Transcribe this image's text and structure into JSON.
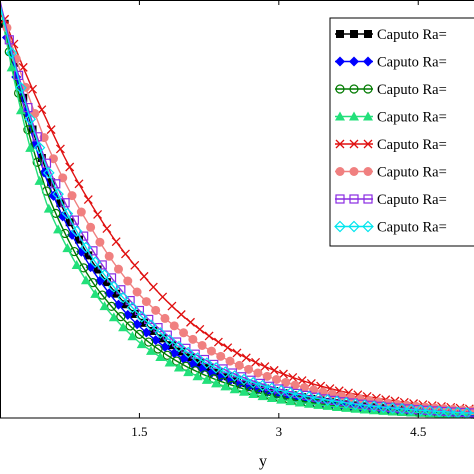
{
  "chart_data": {
    "type": "line",
    "title": "",
    "xlabel": "y",
    "ylabel": "",
    "xlim": [
      0,
      5.1
    ],
    "ylim": [
      0,
      1.05
    ],
    "x_ticks": [
      "1.5",
      "3",
      "4.5"
    ],
    "x_tick_values": [
      1.5,
      3,
      4.5
    ],
    "grid": false,
    "legend_position": "top-right",
    "series": [
      {
        "name": "Caputo Ra=",
        "color": "#000000",
        "marker": "square-filled",
        "values_at_x": {
          "x": [
            0.1,
            0.5,
            1.0,
            1.5,
            2.0,
            2.5,
            3.0,
            3.5,
            4.0,
            4.5,
            5.0
          ],
          "y": [
            0.94,
            0.62,
            0.39,
            0.25,
            0.16,
            0.1,
            0.065,
            0.042,
            0.028,
            0.019,
            0.013
          ]
        }
      },
      {
        "name": "Caputo Ra=",
        "color": "#0000ff",
        "marker": "diamond-filled",
        "values_at_x": {
          "x": [
            0.1,
            0.5,
            1.0,
            1.5,
            2.0,
            2.5,
            3.0,
            3.5,
            4.0,
            4.5,
            5.0
          ],
          "y": [
            0.93,
            0.6,
            0.37,
            0.23,
            0.145,
            0.092,
            0.059,
            0.038,
            0.025,
            0.017,
            0.011
          ]
        }
      },
      {
        "name": "Caputo Ra=",
        "color": "#007a00",
        "marker": "circle-open",
        "values_at_x": {
          "x": [
            0.1,
            0.5,
            1.0,
            1.5,
            2.0,
            2.5,
            3.0,
            3.5,
            4.0,
            4.5,
            5.0
          ],
          "y": [
            0.92,
            0.57,
            0.34,
            0.21,
            0.13,
            0.082,
            0.052,
            0.034,
            0.022,
            0.015,
            0.01
          ]
        }
      },
      {
        "name": "Caputo Ra=",
        "color": "#22e07a",
        "marker": "triangle-filled",
        "values_at_x": {
          "x": [
            0.1,
            0.5,
            1.0,
            1.5,
            2.0,
            2.5,
            3.0,
            3.5,
            4.0,
            4.5,
            5.0
          ],
          "y": [
            0.91,
            0.54,
            0.32,
            0.19,
            0.118,
            0.074,
            0.047,
            0.031,
            0.02,
            0.013,
            0.009
          ]
        }
      },
      {
        "name": "Caputo Ra=",
        "color": "#e01010",
        "marker": "x",
        "values_at_x": {
          "x": [
            0.1,
            0.5,
            1.0,
            1.5,
            2.0,
            2.5,
            3.0,
            3.5,
            4.0,
            4.5,
            5.0
          ],
          "y": [
            0.97,
            0.75,
            0.53,
            0.37,
            0.25,
            0.17,
            0.115,
            0.077,
            0.052,
            0.035,
            0.024
          ]
        }
      },
      {
        "name": "Caputo Ra=",
        "color": "#f08080",
        "marker": "circle-filled",
        "values_at_x": {
          "x": [
            0.1,
            0.5,
            1.0,
            1.5,
            2.0,
            2.5,
            3.0,
            3.5,
            4.0,
            4.5,
            5.0
          ],
          "y": [
            0.96,
            0.69,
            0.47,
            0.31,
            0.21,
            0.14,
            0.095,
            0.064,
            0.043,
            0.029,
            0.02
          ]
        }
      },
      {
        "name": "Caputo Ra=",
        "color": "#8a2be2",
        "marker": "square-open",
        "values_at_x": {
          "x": [
            0.1,
            0.5,
            1.0,
            1.5,
            2.0,
            2.5,
            3.0,
            3.5,
            4.0,
            4.5,
            5.0
          ],
          "y": [
            0.95,
            0.64,
            0.42,
            0.27,
            0.175,
            0.113,
            0.073,
            0.048,
            0.032,
            0.021,
            0.014
          ]
        }
      },
      {
        "name": "Caputo Ra=",
        "color": "#00e5ee",
        "marker": "diamond-open",
        "values_at_x": {
          "x": [
            0.1,
            0.5,
            1.0,
            1.5,
            2.0,
            2.5,
            3.0,
            3.5,
            4.0,
            4.5,
            5.0
          ],
          "y": [
            0.94,
            0.63,
            0.4,
            0.26,
            0.168,
            0.108,
            0.07,
            0.046,
            0.03,
            0.02,
            0.013
          ]
        }
      }
    ]
  }
}
